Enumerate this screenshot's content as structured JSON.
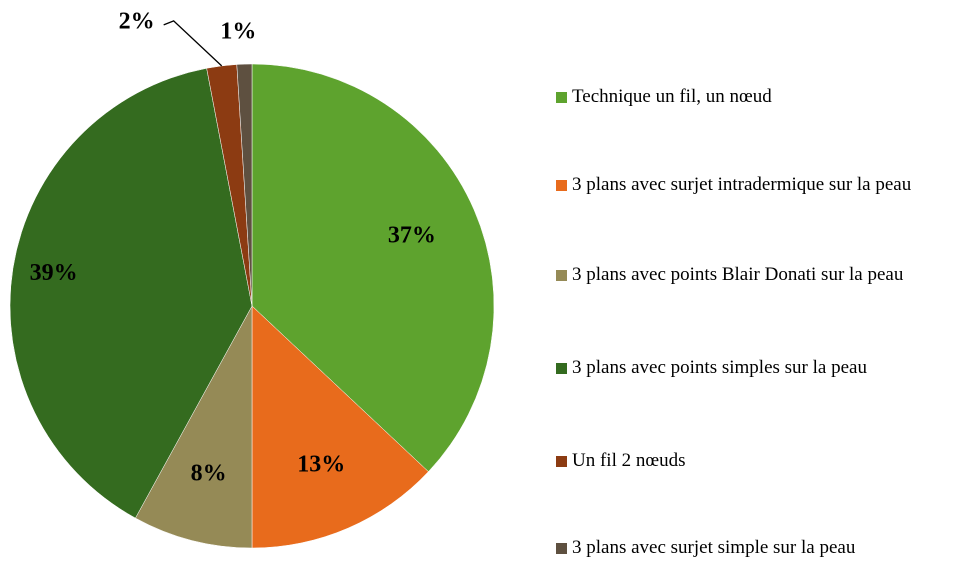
{
  "chart_data": {
    "type": "pie",
    "categories": [
      "Technique un fil, un nœud",
      "3 plans avec surjet intradermique sur la peau",
      "3 plans avec points Blair Donati sur la peau",
      "3 plans avec points simples sur la peau",
      "Un fil 2 nœuds",
      "3 plans avec surjet simple sur la peau"
    ],
    "values": [
      37,
      13,
      8,
      39,
      2,
      1
    ],
    "value_labels": [
      "37%",
      "13%",
      "8%",
      "39%",
      "2%",
      "1%"
    ],
    "colors": [
      "#5ea32e",
      "#e86b1c",
      "#958a56",
      "#346b1f",
      "#8c3b12",
      "#5e5040"
    ],
    "legend": "right"
  }
}
